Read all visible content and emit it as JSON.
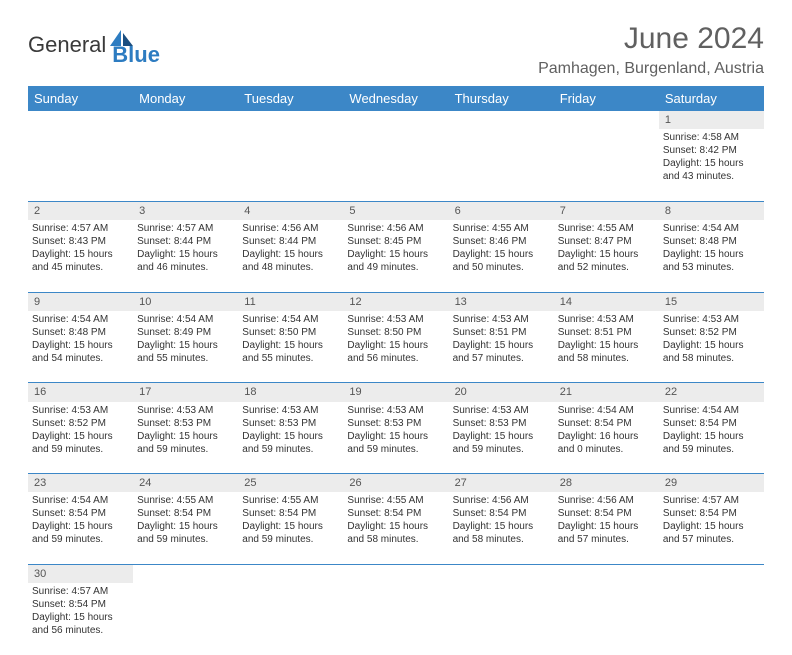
{
  "brand": {
    "name_part1": "General",
    "name_part2": "Blue",
    "color_primary": "#2d7cc1",
    "color_text": "#3a3a3a"
  },
  "header": {
    "month_year": "June 2024",
    "location": "Pamhagen, Burgenland, Austria"
  },
  "colors": {
    "header_bg": "#3c87c7",
    "header_fg": "#ffffff",
    "daynum_bg": "#ececec",
    "row_border": "#3c87c7"
  },
  "days_of_week": [
    "Sunday",
    "Monday",
    "Tuesday",
    "Wednesday",
    "Thursday",
    "Friday",
    "Saturday"
  ],
  "weeks": [
    [
      null,
      null,
      null,
      null,
      null,
      null,
      {
        "n": "1",
        "sr": "Sunrise: 4:58 AM",
        "ss": "Sunset: 8:42 PM",
        "d1": "Daylight: 15 hours",
        "d2": "and 43 minutes."
      }
    ],
    [
      {
        "n": "2",
        "sr": "Sunrise: 4:57 AM",
        "ss": "Sunset: 8:43 PM",
        "d1": "Daylight: 15 hours",
        "d2": "and 45 minutes."
      },
      {
        "n": "3",
        "sr": "Sunrise: 4:57 AM",
        "ss": "Sunset: 8:44 PM",
        "d1": "Daylight: 15 hours",
        "d2": "and 46 minutes."
      },
      {
        "n": "4",
        "sr": "Sunrise: 4:56 AM",
        "ss": "Sunset: 8:44 PM",
        "d1": "Daylight: 15 hours",
        "d2": "and 48 minutes."
      },
      {
        "n": "5",
        "sr": "Sunrise: 4:56 AM",
        "ss": "Sunset: 8:45 PM",
        "d1": "Daylight: 15 hours",
        "d2": "and 49 minutes."
      },
      {
        "n": "6",
        "sr": "Sunrise: 4:55 AM",
        "ss": "Sunset: 8:46 PM",
        "d1": "Daylight: 15 hours",
        "d2": "and 50 minutes."
      },
      {
        "n": "7",
        "sr": "Sunrise: 4:55 AM",
        "ss": "Sunset: 8:47 PM",
        "d1": "Daylight: 15 hours",
        "d2": "and 52 minutes."
      },
      {
        "n": "8",
        "sr": "Sunrise: 4:54 AM",
        "ss": "Sunset: 8:48 PM",
        "d1": "Daylight: 15 hours",
        "d2": "and 53 minutes."
      }
    ],
    [
      {
        "n": "9",
        "sr": "Sunrise: 4:54 AM",
        "ss": "Sunset: 8:48 PM",
        "d1": "Daylight: 15 hours",
        "d2": "and 54 minutes."
      },
      {
        "n": "10",
        "sr": "Sunrise: 4:54 AM",
        "ss": "Sunset: 8:49 PM",
        "d1": "Daylight: 15 hours",
        "d2": "and 55 minutes."
      },
      {
        "n": "11",
        "sr": "Sunrise: 4:54 AM",
        "ss": "Sunset: 8:50 PM",
        "d1": "Daylight: 15 hours",
        "d2": "and 55 minutes."
      },
      {
        "n": "12",
        "sr": "Sunrise: 4:53 AM",
        "ss": "Sunset: 8:50 PM",
        "d1": "Daylight: 15 hours",
        "d2": "and 56 minutes."
      },
      {
        "n": "13",
        "sr": "Sunrise: 4:53 AM",
        "ss": "Sunset: 8:51 PM",
        "d1": "Daylight: 15 hours",
        "d2": "and 57 minutes."
      },
      {
        "n": "14",
        "sr": "Sunrise: 4:53 AM",
        "ss": "Sunset: 8:51 PM",
        "d1": "Daylight: 15 hours",
        "d2": "and 58 minutes."
      },
      {
        "n": "15",
        "sr": "Sunrise: 4:53 AM",
        "ss": "Sunset: 8:52 PM",
        "d1": "Daylight: 15 hours",
        "d2": "and 58 minutes."
      }
    ],
    [
      {
        "n": "16",
        "sr": "Sunrise: 4:53 AM",
        "ss": "Sunset: 8:52 PM",
        "d1": "Daylight: 15 hours",
        "d2": "and 59 minutes."
      },
      {
        "n": "17",
        "sr": "Sunrise: 4:53 AM",
        "ss": "Sunset: 8:53 PM",
        "d1": "Daylight: 15 hours",
        "d2": "and 59 minutes."
      },
      {
        "n": "18",
        "sr": "Sunrise: 4:53 AM",
        "ss": "Sunset: 8:53 PM",
        "d1": "Daylight: 15 hours",
        "d2": "and 59 minutes."
      },
      {
        "n": "19",
        "sr": "Sunrise: 4:53 AM",
        "ss": "Sunset: 8:53 PM",
        "d1": "Daylight: 15 hours",
        "d2": "and 59 minutes."
      },
      {
        "n": "20",
        "sr": "Sunrise: 4:53 AM",
        "ss": "Sunset: 8:53 PM",
        "d1": "Daylight: 15 hours",
        "d2": "and 59 minutes."
      },
      {
        "n": "21",
        "sr": "Sunrise: 4:54 AM",
        "ss": "Sunset: 8:54 PM",
        "d1": "Daylight: 16 hours",
        "d2": "and 0 minutes."
      },
      {
        "n": "22",
        "sr": "Sunrise: 4:54 AM",
        "ss": "Sunset: 8:54 PM",
        "d1": "Daylight: 15 hours",
        "d2": "and 59 minutes."
      }
    ],
    [
      {
        "n": "23",
        "sr": "Sunrise: 4:54 AM",
        "ss": "Sunset: 8:54 PM",
        "d1": "Daylight: 15 hours",
        "d2": "and 59 minutes."
      },
      {
        "n": "24",
        "sr": "Sunrise: 4:55 AM",
        "ss": "Sunset: 8:54 PM",
        "d1": "Daylight: 15 hours",
        "d2": "and 59 minutes."
      },
      {
        "n": "25",
        "sr": "Sunrise: 4:55 AM",
        "ss": "Sunset: 8:54 PM",
        "d1": "Daylight: 15 hours",
        "d2": "and 59 minutes."
      },
      {
        "n": "26",
        "sr": "Sunrise: 4:55 AM",
        "ss": "Sunset: 8:54 PM",
        "d1": "Daylight: 15 hours",
        "d2": "and 58 minutes."
      },
      {
        "n": "27",
        "sr": "Sunrise: 4:56 AM",
        "ss": "Sunset: 8:54 PM",
        "d1": "Daylight: 15 hours",
        "d2": "and 58 minutes."
      },
      {
        "n": "28",
        "sr": "Sunrise: 4:56 AM",
        "ss": "Sunset: 8:54 PM",
        "d1": "Daylight: 15 hours",
        "d2": "and 57 minutes."
      },
      {
        "n": "29",
        "sr": "Sunrise: 4:57 AM",
        "ss": "Sunset: 8:54 PM",
        "d1": "Daylight: 15 hours",
        "d2": "and 57 minutes."
      }
    ],
    [
      {
        "n": "30",
        "sr": "Sunrise: 4:57 AM",
        "ss": "Sunset: 8:54 PM",
        "d1": "Daylight: 15 hours",
        "d2": "and 56 minutes."
      },
      null,
      null,
      null,
      null,
      null,
      null
    ]
  ]
}
